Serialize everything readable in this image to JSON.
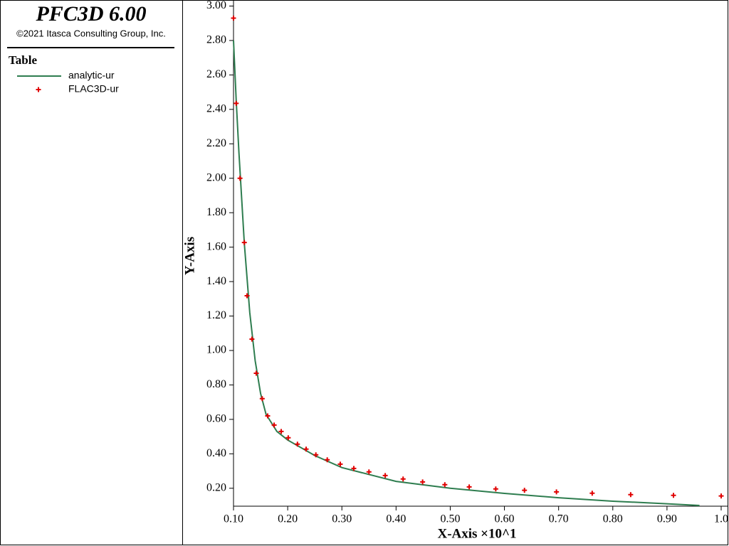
{
  "chart_data": {
    "type": "line",
    "title": "PFC3D 6.00",
    "subtitle": "©2021 Itasca Consulting Group, Inc.",
    "legend_title": "Table",
    "x_label": "X-Axis ×10^1",
    "y_label": "Y-Axis",
    "xlim": [
      0.1,
      1.0
    ],
    "ylim": [
      0.1,
      3.0
    ],
    "xticks": [
      {
        "value": 0.1,
        "label": "0.10"
      },
      {
        "value": 0.2,
        "label": "0.20"
      },
      {
        "value": 0.3,
        "label": "0.30"
      },
      {
        "value": 0.4,
        "label": "0.40"
      },
      {
        "value": 0.5,
        "label": "0.50"
      },
      {
        "value": 0.6,
        "label": "0.60"
      },
      {
        "value": 0.7,
        "label": "0.70"
      },
      {
        "value": 0.8,
        "label": "0.80"
      },
      {
        "value": 0.9,
        "label": "0.90"
      },
      {
        "value": 1.0,
        "label": "1.0"
      }
    ],
    "yticks": [
      {
        "value": 0.2,
        "label": "0.20"
      },
      {
        "value": 0.4,
        "label": "0.40"
      },
      {
        "value": 0.6,
        "label": "0.60"
      },
      {
        "value": 0.8,
        "label": "0.80"
      },
      {
        "value": 1.0,
        "label": "1.00"
      },
      {
        "value": 1.2,
        "label": "1.20"
      },
      {
        "value": 1.4,
        "label": "1.40"
      },
      {
        "value": 1.6,
        "label": "1.60"
      },
      {
        "value": 1.8,
        "label": "1.80"
      },
      {
        "value": 2.0,
        "label": "2.00"
      },
      {
        "value": 2.2,
        "label": "2.20"
      },
      {
        "value": 2.4,
        "label": "2.40"
      },
      {
        "value": 2.6,
        "label": "2.60"
      },
      {
        "value": 2.8,
        "label": "2.80"
      },
      {
        "value": 3.0,
        "label": "3.00"
      }
    ],
    "series": [
      {
        "name": "analytic-ur",
        "color": "#2e7d4f",
        "mode": "line",
        "x": [
          0.1,
          0.105,
          0.11,
          0.12,
          0.13,
          0.14,
          0.15,
          0.16,
          0.18,
          0.2,
          0.25,
          0.3,
          0.4,
          0.5,
          0.6,
          0.7,
          0.8,
          0.9,
          0.96
        ],
        "values": [
          2.8,
          2.45,
          2.15,
          1.62,
          1.22,
          0.94,
          0.75,
          0.63,
          0.53,
          0.48,
          0.39,
          0.32,
          0.24,
          0.2,
          0.17,
          0.145,
          0.125,
          0.11,
          0.1
        ]
      },
      {
        "name": "FLAC3D-ur",
        "color": "#e00000",
        "mode": "markers",
        "x": [
          0.1,
          0.105,
          0.112,
          0.12,
          0.125,
          0.134,
          0.142,
          0.153,
          0.163,
          0.175,
          0.188,
          0.201,
          0.218,
          0.234,
          0.252,
          0.273,
          0.297,
          0.322,
          0.35,
          0.38,
          0.413,
          0.449,
          0.49,
          0.535,
          0.584,
          0.637,
          0.696,
          0.762,
          0.833,
          0.912,
          1.0
        ],
        "values": [
          2.93,
          2.435,
          2.0,
          1.627,
          1.318,
          1.066,
          0.868,
          0.72,
          0.62,
          0.567,
          0.53,
          0.493,
          0.456,
          0.427,
          0.394,
          0.365,
          0.34,
          0.315,
          0.295,
          0.274,
          0.254,
          0.237,
          0.221,
          0.208,
          0.196,
          0.188,
          0.179,
          0.171,
          0.163,
          0.159,
          0.155
        ]
      }
    ]
  }
}
